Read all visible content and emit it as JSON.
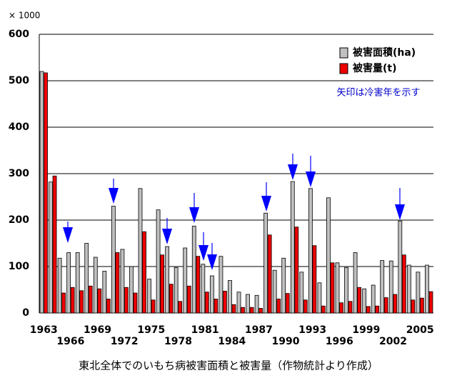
{
  "chart_data": {
    "type": "bar",
    "y_unit_label": "× 1000",
    "caption": "東北全体でのいもち病被害面積と被害量（作物統計より作成）",
    "annotation": "矢印は冷害年を示す",
    "categories": [
      "1963",
      null,
      null,
      "1966",
      null,
      null,
      "1969",
      null,
      null,
      "1972",
      null,
      null,
      "1975",
      null,
      null,
      "1978",
      null,
      null,
      "1981",
      null,
      null,
      "1984",
      null,
      null,
      "1987",
      null,
      null,
      "1990",
      null,
      null,
      "1993",
      null,
      null,
      "1996",
      null,
      null,
      "1999",
      null,
      null,
      "2002",
      null,
      null,
      "2005",
      null
    ],
    "series": [
      {
        "name": "被害面積(ha)",
        "color": "#c0c0c0",
        "values": [
          520,
          282,
          118,
          130,
          130,
          150,
          120,
          90,
          230,
          137,
          100,
          268,
          73,
          222,
          143,
          98,
          140,
          187,
          105,
          80,
          122,
          70,
          45,
          40,
          38,
          215,
          92,
          118,
          283,
          88,
          268,
          65,
          248,
          108,
          98,
          130,
          52,
          60,
          113,
          112,
          198,
          103,
          88,
          103
        ]
      },
      {
        "name": "被害量(t)",
        "color": "#ee0000",
        "values": [
          517,
          295,
          43,
          55,
          48,
          58,
          52,
          30,
          130,
          55,
          43,
          175,
          28,
          125,
          62,
          25,
          58,
          122,
          45,
          30,
          47,
          18,
          12,
          12,
          10,
          168,
          30,
          42,
          185,
          28,
          145,
          15,
          108,
          22,
          25,
          55,
          14,
          15,
          33,
          40,
          125,
          28,
          32,
          46
        ]
      }
    ],
    "ylim": [
      0,
      600
    ],
    "yticks": [
      0,
      100,
      200,
      300,
      400,
      500,
      600
    ],
    "grid": true,
    "legend": "top-right"
  }
}
